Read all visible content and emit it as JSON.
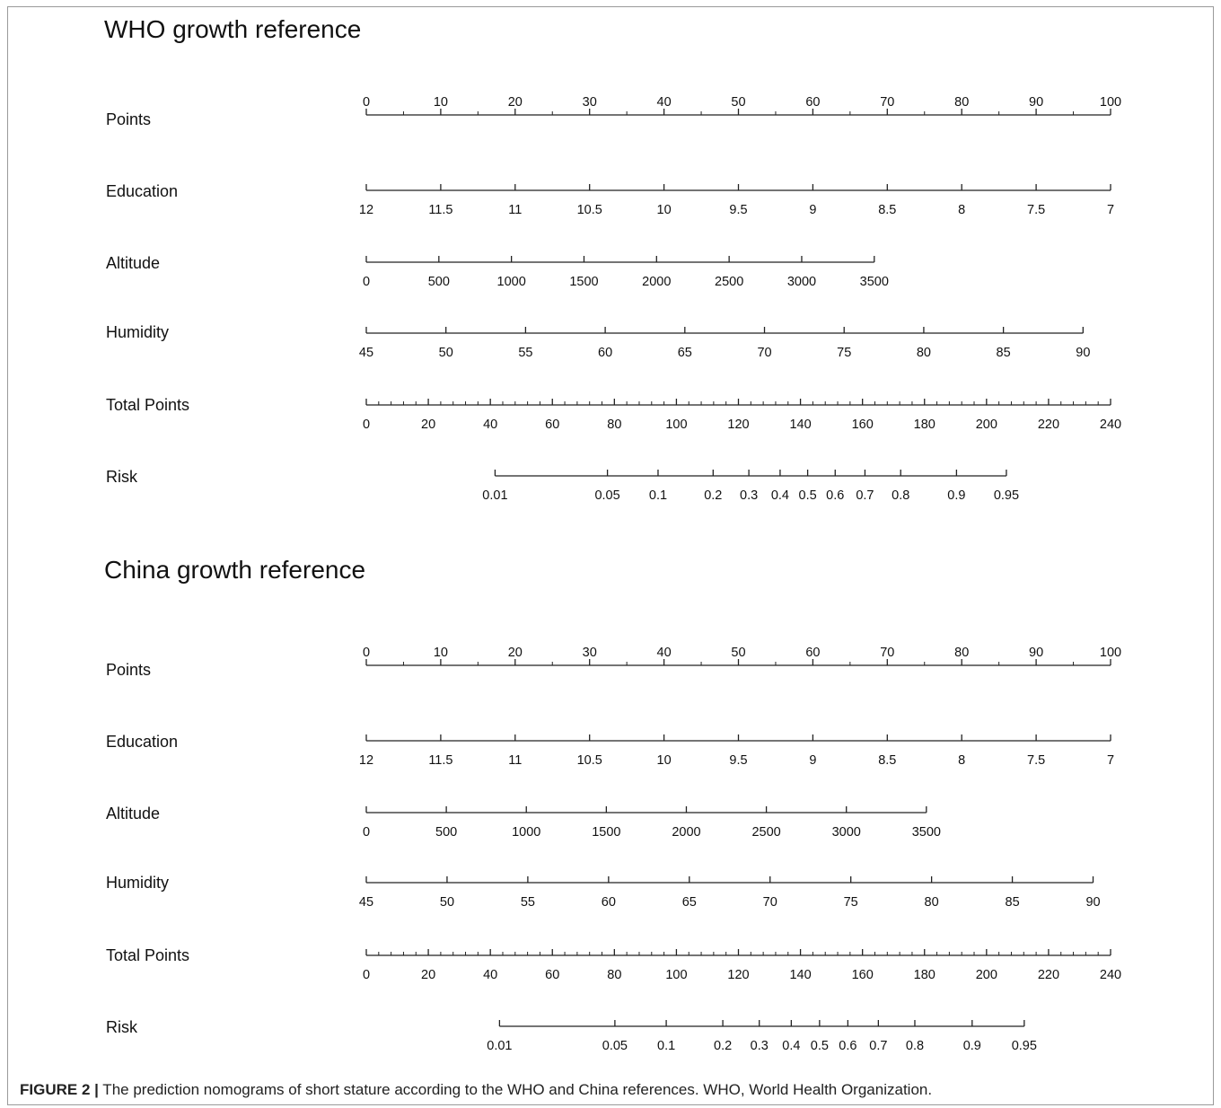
{
  "figure": {
    "label": "FIGURE 2 |",
    "caption": " The prediction nomograms of short stature according to the WHO and China references. WHO, World Health Organization."
  },
  "chart_data": [
    {
      "type": "nomogram",
      "title": "WHO growth reference",
      "points_range": [
        0,
        100
      ],
      "rows": [
        {
          "name": "Points",
          "values": [
            0,
            10,
            20,
            30,
            40,
            50,
            60,
            70,
            80,
            90,
            100
          ],
          "labels": [
            "0",
            "10",
            "20",
            "30",
            "40",
            "50",
            "60",
            "70",
            "80",
            "90",
            "100"
          ],
          "positions": [
            0,
            10,
            20,
            30,
            40,
            50,
            60,
            70,
            80,
            90,
            100
          ],
          "minor_ticks": 1,
          "label_side": "top"
        },
        {
          "name": "Education",
          "values": [
            12,
            11.5,
            11,
            10.5,
            10,
            9.5,
            9,
            8.5,
            8,
            7.5,
            7
          ],
          "labels": [
            "12",
            "11.5",
            "11",
            "10.5",
            "10",
            "9.5",
            "9",
            "8.5",
            "8",
            "7.5",
            "7"
          ],
          "positions": [
            0,
            10,
            20,
            30,
            40,
            50,
            60,
            70,
            80,
            90,
            100
          ],
          "label_side": "bottom"
        },
        {
          "name": "Altitude",
          "values": [
            0,
            500,
            1000,
            1500,
            2000,
            2500,
            3000,
            3500
          ],
          "labels": [
            "0",
            "500",
            "1000",
            "1500",
            "2000",
            "2500",
            "3000",
            "3500"
          ],
          "positions": [
            0,
            9.75,
            19.5,
            29.25,
            39,
            48.75,
            58.5,
            68.25
          ],
          "label_side": "bottom"
        },
        {
          "name": "Humidity",
          "values": [
            45,
            50,
            55,
            60,
            65,
            70,
            75,
            80,
            85,
            90
          ],
          "labels": [
            "45",
            "50",
            "55",
            "60",
            "65",
            "70",
            "75",
            "80",
            "85",
            "90"
          ],
          "positions": [
            0,
            10.7,
            21.4,
            32.1,
            42.8,
            53.5,
            64.2,
            74.9,
            85.6,
            96.3
          ],
          "label_side": "bottom"
        },
        {
          "name": "Total Points",
          "values": [
            0,
            20,
            40,
            60,
            80,
            100,
            120,
            140,
            160,
            180,
            200,
            220,
            240
          ],
          "labels": [
            "0",
            "20",
            "40",
            "60",
            "80",
            "100",
            "120",
            "140",
            "160",
            "180",
            "200",
            "220",
            "240"
          ],
          "positions": [
            0,
            8.333,
            16.667,
            25,
            33.333,
            41.667,
            50,
            58.333,
            66.667,
            75,
            83.333,
            91.667,
            100
          ],
          "minor_ticks": 4,
          "label_side": "bottom"
        },
        {
          "name": "Risk",
          "values": [
            0.01,
            0.05,
            0.1,
            0.2,
            0.3,
            0.4,
            0.5,
            0.6,
            0.7,
            0.8,
            0.9,
            0.95
          ],
          "labels": [
            "0.01",
            "0.05",
            "0.1",
            "0.2",
            "0.3",
            "0.4",
            "0.5",
            "0.6",
            "0.7",
            "0.8",
            "0.9",
            "0.95"
          ],
          "positions": [
            17.3,
            32.4,
            39.2,
            46.6,
            51.4,
            55.6,
            59.3,
            63.0,
            67.0,
            71.8,
            79.3,
            86.0
          ],
          "label_side": "bottom"
        }
      ]
    },
    {
      "type": "nomogram",
      "title": "China growth reference",
      "points_range": [
        0,
        100
      ],
      "rows": [
        {
          "name": "Points",
          "values": [
            0,
            10,
            20,
            30,
            40,
            50,
            60,
            70,
            80,
            90,
            100
          ],
          "labels": [
            "0",
            "10",
            "20",
            "30",
            "40",
            "50",
            "60",
            "70",
            "80",
            "90",
            "100"
          ],
          "positions": [
            0,
            10,
            20,
            30,
            40,
            50,
            60,
            70,
            80,
            90,
            100
          ],
          "minor_ticks": 1,
          "label_side": "top"
        },
        {
          "name": "Education",
          "values": [
            12,
            11.5,
            11,
            10.5,
            10,
            9.5,
            9,
            8.5,
            8,
            7.5,
            7
          ],
          "labels": [
            "12",
            "11.5",
            "11",
            "10.5",
            "10",
            "9.5",
            "9",
            "8.5",
            "8",
            "7.5",
            "7"
          ],
          "positions": [
            0,
            10,
            20,
            30,
            40,
            50,
            60,
            70,
            80,
            90,
            100
          ],
          "label_side": "bottom"
        },
        {
          "name": "Altitude",
          "values": [
            0,
            500,
            1000,
            1500,
            2000,
            2500,
            3000,
            3500
          ],
          "labels": [
            "0",
            "500",
            "1000",
            "1500",
            "2000",
            "2500",
            "3000",
            "3500"
          ],
          "positions": [
            0,
            10.75,
            21.5,
            32.25,
            43,
            53.75,
            64.5,
            75.25
          ],
          "label_side": "bottom"
        },
        {
          "name": "Humidity",
          "values": [
            45,
            50,
            55,
            60,
            65,
            70,
            75,
            80,
            85,
            90
          ],
          "labels": [
            "45",
            "50",
            "55",
            "60",
            "65",
            "70",
            "75",
            "80",
            "85",
            "90"
          ],
          "positions": [
            0,
            10.85,
            21.7,
            32.55,
            43.4,
            54.25,
            65.1,
            75.95,
            86.8,
            97.65
          ],
          "label_side": "bottom"
        },
        {
          "name": "Total Points",
          "values": [
            0,
            20,
            40,
            60,
            80,
            100,
            120,
            140,
            160,
            180,
            200,
            220,
            240
          ],
          "labels": [
            "0",
            "20",
            "40",
            "60",
            "80",
            "100",
            "120",
            "140",
            "160",
            "180",
            "200",
            "220",
            "240"
          ],
          "positions": [
            0,
            8.333,
            16.667,
            25,
            33.333,
            41.667,
            50,
            58.333,
            66.667,
            75,
            83.333,
            91.667,
            100
          ],
          "minor_ticks": 4,
          "label_side": "bottom"
        },
        {
          "name": "Risk",
          "values": [
            0.01,
            0.05,
            0.1,
            0.2,
            0.3,
            0.4,
            0.5,
            0.6,
            0.7,
            0.8,
            0.9,
            0.95
          ],
          "labels": [
            "0.01",
            "0.05",
            "0.1",
            "0.2",
            "0.3",
            "0.4",
            "0.5",
            "0.6",
            "0.7",
            "0.8",
            "0.9",
            "0.95"
          ],
          "positions": [
            17.9,
            33.4,
            40.3,
            47.9,
            52.8,
            57.1,
            60.9,
            64.7,
            68.8,
            73.7,
            81.4,
            88.4
          ],
          "label_side": "bottom"
        }
      ]
    }
  ]
}
